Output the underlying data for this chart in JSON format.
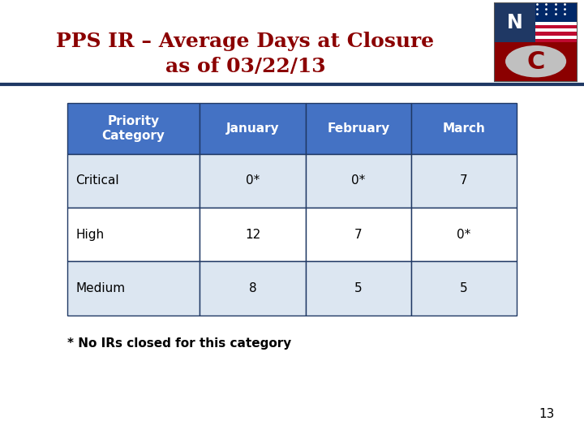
{
  "title_line1": "PPS IR – Average Days at Closure",
  "title_line2": "as of 03/22/13",
  "title_color": "#8B0000",
  "header_bar_bg": "#C5CFE0",
  "header_bar_border": "#1F3864",
  "slide_bg": "#FFFFFF",
  "header_bg": "#4472C4",
  "header_text_color": "#FFFFFF",
  "row_bg_light": "#DCE6F1",
  "row_bg_white": "#FFFFFF",
  "cell_border": "#1F3864",
  "columns": [
    "Priority\nCategory",
    "January",
    "February",
    "March"
  ],
  "rows": [
    [
      "Critical",
      "0*",
      "0*",
      "7"
    ],
    [
      "High",
      "12",
      "7",
      "0*"
    ],
    [
      "Medium",
      "8",
      "5",
      "5"
    ]
  ],
  "row_colors": [
    "#DCE6F1",
    "#FFFFFF",
    "#DCE6F1"
  ],
  "footnote": "* No IRs closed for this category",
  "page_number": "13",
  "title_fontsize": 18,
  "header_fontsize": 11,
  "cell_fontsize": 11,
  "footnote_fontsize": 11
}
